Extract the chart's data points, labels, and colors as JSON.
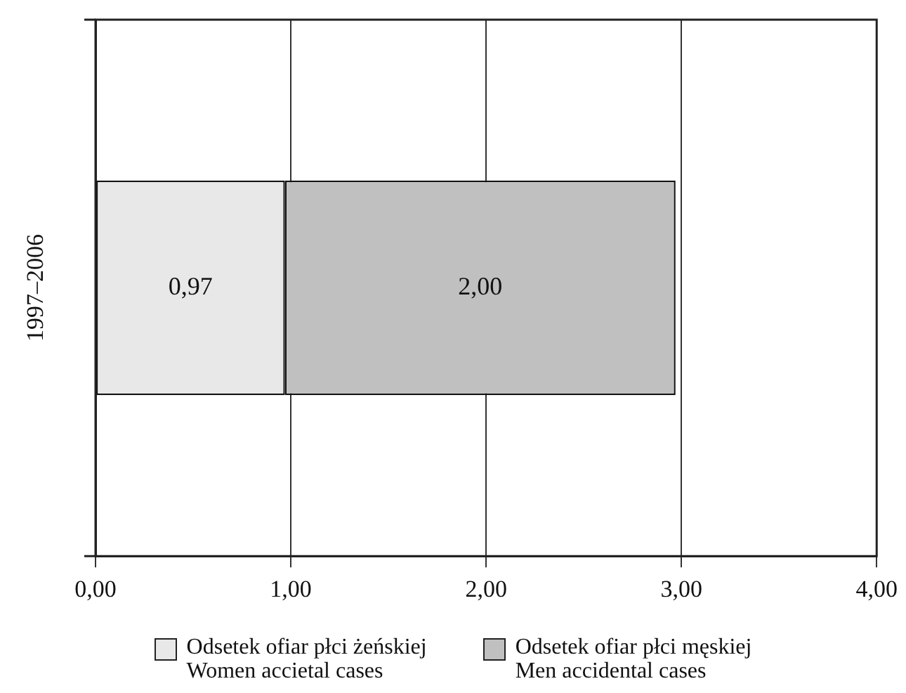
{
  "chart_data": {
    "type": "bar",
    "orientation": "horizontal",
    "stacked": true,
    "categories": [
      "1997–2006"
    ],
    "series": [
      {
        "name": "Odsetek ofiar płci żeńskiej\nWomen accietal cases",
        "color": "#e8e8e8",
        "values": [
          0.97
        ],
        "value_labels": [
          "0,97"
        ]
      },
      {
        "name": "Odsetek ofiar płci męskiej\nMen accidental cases",
        "color": "#c0c0c0",
        "values": [
          2.0
        ],
        "value_labels": [
          "2,00"
        ]
      }
    ],
    "xlim": [
      0,
      4
    ],
    "xticks": [
      {
        "value": 0,
        "label": "0,00"
      },
      {
        "value": 1,
        "label": "1,00"
      },
      {
        "value": 2,
        "label": "2,00"
      },
      {
        "value": 3,
        "label": "3,00"
      },
      {
        "value": 4,
        "label": "4,00"
      }
    ],
    "grid": "x",
    "legend": "bottom"
  }
}
